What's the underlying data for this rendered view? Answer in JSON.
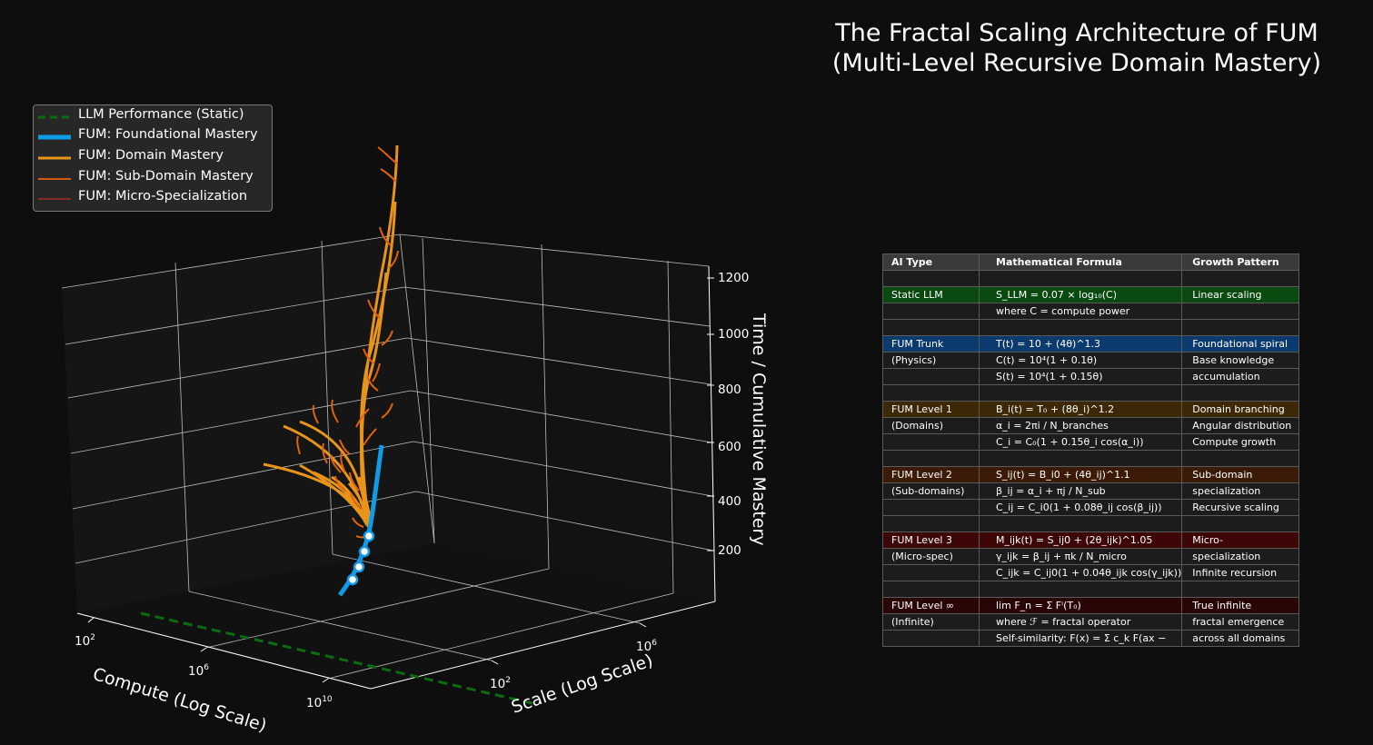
{
  "title_line1": "The Fractal Scaling Architecture of FUM",
  "title_line2": "(Multi-Level Recursive Domain Mastery)",
  "colors": {
    "background": "#0e0e0e",
    "llm": "#0d6b12",
    "foundational": "#0f9be6",
    "domain": "#e8941a",
    "subdomain": "#e0620e",
    "micro": "#d6401c"
  },
  "legend": [
    {
      "label": "LLM Performance (Static)",
      "color": "#0d6b12",
      "style": "dashed"
    },
    {
      "label": "FUM: Foundational Mastery",
      "color": "#0f9be6",
      "style": "thick"
    },
    {
      "label": "FUM: Domain Mastery",
      "color": "#e8941a",
      "style": "solid"
    },
    {
      "label": "FUM: Sub-Domain Mastery",
      "color": "#d45a14",
      "style": "solid"
    },
    {
      "label": "FUM: Micro-Specialization",
      "color": "#b8321a",
      "style": "thin"
    }
  ],
  "axes": {
    "x_label": "Compute (Log Scale)",
    "y_label": "Scale (Log Scale)",
    "z_label": "Time / Cumulative Mastery",
    "x_ticks": [
      {
        "base": "10",
        "exp": "2"
      },
      {
        "base": "10",
        "exp": "6"
      },
      {
        "base": "10",
        "exp": "10"
      }
    ],
    "y_ticks": [
      {
        "base": "10",
        "exp": "2"
      },
      {
        "base": "10",
        "exp": "6"
      }
    ],
    "z_ticks": [
      "200",
      "400",
      "600",
      "800",
      "1000",
      "1200"
    ]
  },
  "chart_data": {
    "type": "line",
    "projection": "3d",
    "x_scale": "log",
    "y_scale": "log",
    "zlim": [
      0,
      1300
    ],
    "grid": true,
    "legend_position": "upper-left",
    "series": [
      {
        "name": "LLM Performance (Static)",
        "level": "static",
        "line": "dashed",
        "description_z": 0
      },
      {
        "name": "FUM: Foundational Mastery",
        "level": "trunk",
        "z": [
          0,
          100,
          200,
          300,
          400,
          500,
          600
        ],
        "markers_at_z": [
          50,
          110,
          170,
          220
        ]
      },
      {
        "name": "FUM: Domain Mastery",
        "level": "domain",
        "branches": 10,
        "z_max": 1300
      },
      {
        "name": "FUM: Sub-Domain Mastery",
        "level": "sub-domain"
      },
      {
        "name": "FUM: Micro-Specialization",
        "level": "micro"
      }
    ]
  },
  "table": {
    "headers": [
      "AI Type",
      "Mathematical Formula",
      "Growth Pattern"
    ],
    "rows": [
      {
        "c1": "",
        "c2": "",
        "c3": "",
        "hl": ""
      },
      {
        "c1": "Static LLM",
        "c2": "S_LLM = 0.07 × log₁₀(C)",
        "c3": "Linear scaling",
        "hl": "green"
      },
      {
        "c1": "",
        "c2": "where C = compute power",
        "c3": "",
        "hl": ""
      },
      {
        "c1": "",
        "c2": "",
        "c3": "",
        "hl": ""
      },
      {
        "c1": "FUM Trunk",
        "c2": "T(t) = 10 + (4θ)^1.3",
        "c3": "Foundational spiral",
        "hl": "blue"
      },
      {
        "c1": "(Physics)",
        "c2": "C(t) = 10⁴(1 + 0.1θ)",
        "c3": "Base knowledge",
        "hl": ""
      },
      {
        "c1": "",
        "c2": "S(t) = 10⁴(1 + 0.15θ)",
        "c3": "accumulation",
        "hl": ""
      },
      {
        "c1": "",
        "c2": "",
        "c3": "",
        "hl": ""
      },
      {
        "c1": "FUM Level 1",
        "c2": "B_i(t) = T₀ + (8θ_i)^1.2",
        "c3": "Domain branching",
        "hl": "amber"
      },
      {
        "c1": "(Domains)",
        "c2": "α_i = 2πi / N_branches",
        "c3": "Angular distribution",
        "hl": ""
      },
      {
        "c1": "",
        "c2": "C_i = C₀(1 + 0.15θ_i cos(α_i))",
        "c3": "Compute growth",
        "hl": ""
      },
      {
        "c1": "",
        "c2": "",
        "c3": "",
        "hl": ""
      },
      {
        "c1": "FUM Level 2",
        "c2": "S_ij(t) = B_i0 + (4θ_ij)^1.1",
        "c3": "Sub-domain",
        "hl": "rust"
      },
      {
        "c1": "(Sub-domains)",
        "c2": "β_ij = α_i + πj / N_sub",
        "c3": "specialization",
        "hl": ""
      },
      {
        "c1": "",
        "c2": "C_ij = C_i0(1 + 0.08θ_ij cos(β_ij))",
        "c3": "Recursive scaling",
        "hl": ""
      },
      {
        "c1": "",
        "c2": "",
        "c3": "",
        "hl": ""
      },
      {
        "c1": "FUM Level 3",
        "c2": "M_ijk(t) = S_ij0 + (2θ_ijk)^1.05",
        "c3": "Micro-",
        "hl": "red"
      },
      {
        "c1": "(Micro-spec)",
        "c2": "γ_ijk = β_ij + πk / N_micro",
        "c3": "specialization",
        "hl": ""
      },
      {
        "c1": "",
        "c2": "C_ijk = C_ij0(1 + 0.04θ_ijk cos(γ_ijk))",
        "c3": "Infinite recursion",
        "hl": ""
      },
      {
        "c1": "",
        "c2": "",
        "c3": "",
        "hl": ""
      },
      {
        "c1": "FUM Level ∞",
        "c2": "lim F_n = Σ Fⁱ(T₀)",
        "c3": "True infinite",
        "hl": "dark"
      },
      {
        "c1": "(Infinite)",
        "c2": "where ℱ = fractal operator",
        "c3": "fractal emergence",
        "hl": ""
      },
      {
        "c1": "",
        "c2": "Self-similarity: F(x) = Σ c_k F(ax −",
        "c3": "across all domains",
        "hl": ""
      }
    ]
  }
}
